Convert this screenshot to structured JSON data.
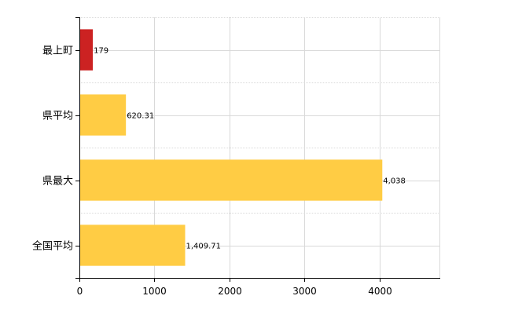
{
  "chart_data": {
    "type": "bar",
    "orientation": "horizontal",
    "categories": [
      "最上町",
      "県平均",
      "県最大",
      "全国平均"
    ],
    "values": [
      179,
      620.31,
      4038,
      1409.71
    ],
    "value_labels": [
      "179",
      "620.31",
      "4,038",
      "1,409.71"
    ],
    "bar_colors": [
      "#cc2222",
      "#ffcc44",
      "#ffcc44",
      "#ffcc44"
    ],
    "xlim": [
      0,
      4800
    ],
    "x_ticks": [
      0,
      1000,
      2000,
      3000,
      4000
    ],
    "x_tick_labels": [
      "0",
      "1000",
      "2000",
      "3000",
      "4000"
    ],
    "grid": true,
    "legend": "none",
    "title": "",
    "xlabel": "",
    "ylabel": ""
  },
  "colors": {
    "grid": "#d9d9d9",
    "axis": "#000000",
    "highlight": "#cc2222",
    "default_bar": "#ffcc44"
  }
}
